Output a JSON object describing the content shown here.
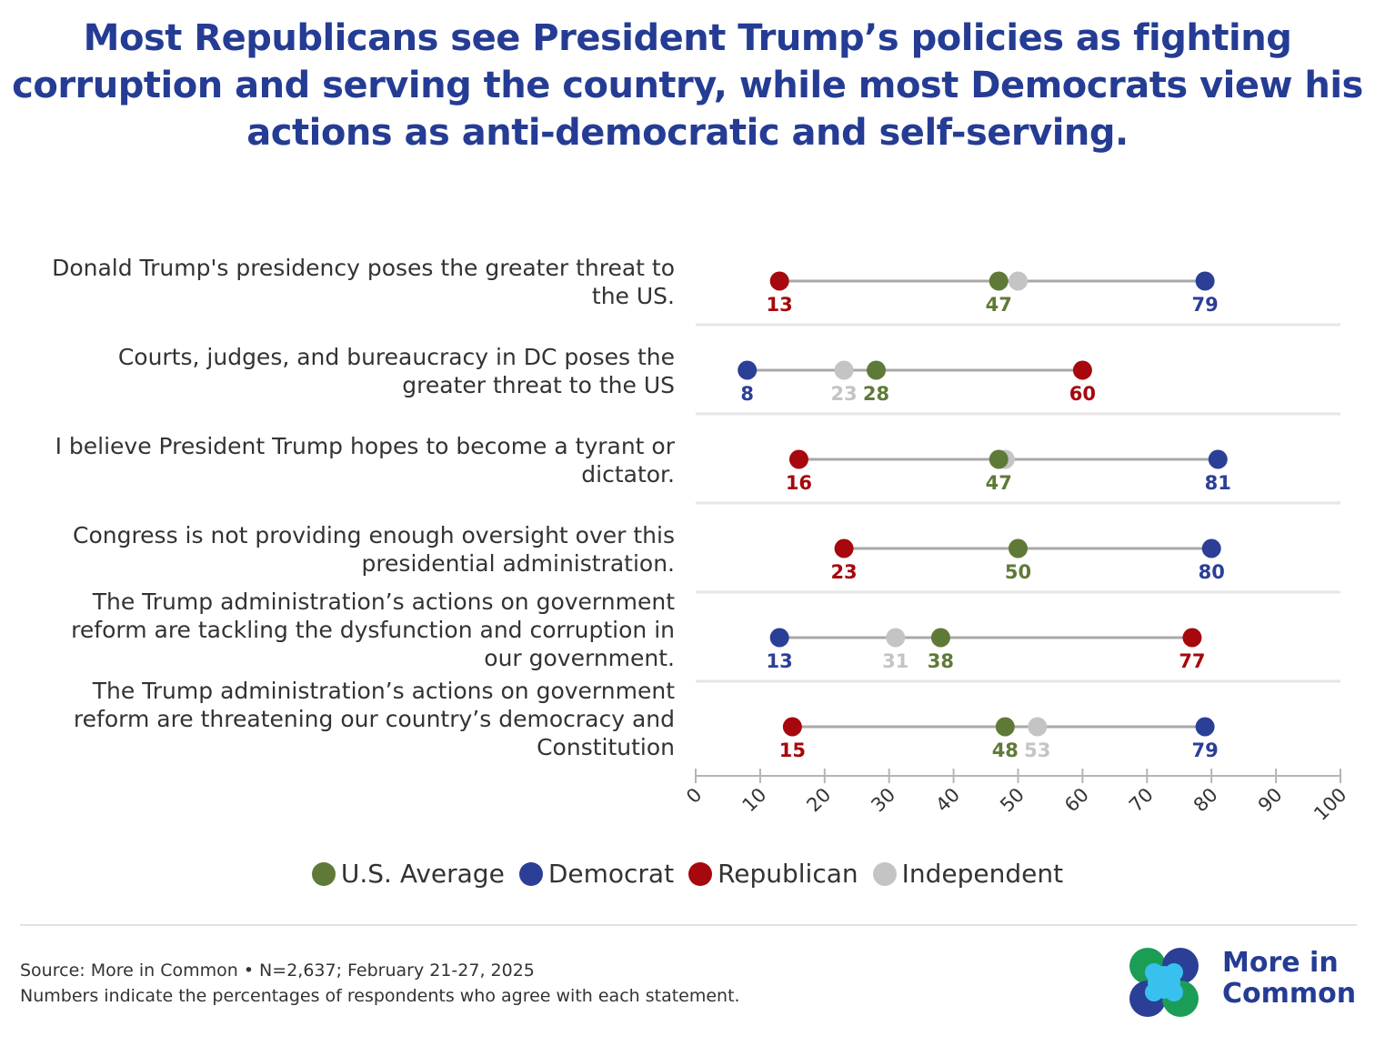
{
  "title_lines": [
    "Most Republicans see President Trump’s policies as fighting",
    "corruption and serving the country, while most Democrats view his",
    "actions as anti-democratic and self-serving."
  ],
  "colors": {
    "title": "#253c94",
    "us_average": "#5f7a37",
    "democrat": "#2b3f96",
    "republican": "#a6080d",
    "independent": "#c4c4c4",
    "connector": "#a8a8a8",
    "separator": "#e6e6e6"
  },
  "chart_data": {
    "type": "dot-range",
    "xlim": [
      0,
      100
    ],
    "x_ticks": [
      0,
      10,
      20,
      30,
      40,
      50,
      60,
      70,
      80,
      90,
      100
    ],
    "series": [
      {
        "name": "U.S. Average",
        "key": "us_average"
      },
      {
        "name": "Democrat",
        "key": "democrat"
      },
      {
        "name": "Republican",
        "key": "republican"
      },
      {
        "name": "Independent",
        "key": "independent"
      }
    ],
    "rows": [
      {
        "label_lines": [
          "Donald Trump's presidency poses the greater threat to",
          "the US."
        ],
        "values": {
          "republican": 13,
          "us_average": 47,
          "independent": 50,
          "democrat": 79
        },
        "labels": [
          {
            "series": "republican",
            "text": "13"
          },
          {
            "series": "us_average",
            "text": "47"
          },
          {
            "series": "democrat",
            "text": "79"
          }
        ]
      },
      {
        "label_lines": [
          "Courts, judges, and bureaucracy in DC poses the",
          "greater threat to the US"
        ],
        "values": {
          "democrat": 8,
          "independent": 23,
          "us_average": 28,
          "republican": 60
        },
        "labels": [
          {
            "series": "democrat",
            "text": "8"
          },
          {
            "series": "independent",
            "text": "23"
          },
          {
            "series": "us_average",
            "text": "28"
          },
          {
            "series": "republican",
            "text": "60"
          }
        ]
      },
      {
        "label_lines": [
          "I believe President Trump hopes to become a tyrant or",
          "dictator."
        ],
        "values": {
          "republican": 16,
          "us_average": 47,
          "independent": 48,
          "democrat": 81
        },
        "labels": [
          {
            "series": "republican",
            "text": "16"
          },
          {
            "series": "us_average",
            "text": "47"
          },
          {
            "series": "democrat",
            "text": "81"
          }
        ]
      },
      {
        "label_lines": [
          "Congress is not providing enough oversight over this",
          "presidential administration."
        ],
        "values": {
          "republican": 23,
          "independent": 50,
          "us_average": 50,
          "democrat": 80
        },
        "labels": [
          {
            "series": "republican",
            "text": "23"
          },
          {
            "series": "us_average",
            "text": "50"
          },
          {
            "series": "democrat",
            "text": "80"
          }
        ]
      },
      {
        "label_lines": [
          "The Trump administration’s actions on government",
          "reform are tackling the dysfunction and corruption in",
          "our government."
        ],
        "values": {
          "democrat": 13,
          "independent": 31,
          "us_average": 38,
          "republican": 77
        },
        "labels": [
          {
            "series": "democrat",
            "text": "13"
          },
          {
            "series": "independent",
            "text": "31"
          },
          {
            "series": "us_average",
            "text": "38"
          },
          {
            "series": "republican",
            "text": "77"
          }
        ]
      },
      {
        "label_lines": [
          "The Trump administration’s actions on government",
          "reform are threatening our country’s democracy and",
          "Constitution"
        ],
        "values": {
          "republican": 15,
          "us_average": 48,
          "independent": 53,
          "democrat": 79
        },
        "labels": [
          {
            "series": "republican",
            "text": "15"
          },
          {
            "series": "us_average",
            "text": "48"
          },
          {
            "series": "independent",
            "text": "53"
          },
          {
            "series": "democrat",
            "text": "79"
          }
        ]
      }
    ]
  },
  "legend": [
    {
      "label": "U.S. Average",
      "key": "us_average"
    },
    {
      "label": "Democrat",
      "key": "democrat"
    },
    {
      "label": "Republican",
      "key": "republican"
    },
    {
      "label": "Independent",
      "key": "independent"
    }
  ],
  "footer": {
    "source": "Source: More in Common • N=2,637; February 21-27, 2025",
    "note": "Numbers indicate the percentages of respondents who agree with each statement."
  },
  "logo": {
    "text_lines": [
      "More in",
      "Common"
    ],
    "colors": [
      "#1c9d56",
      "#2b3f96",
      "#38c1ee"
    ]
  }
}
